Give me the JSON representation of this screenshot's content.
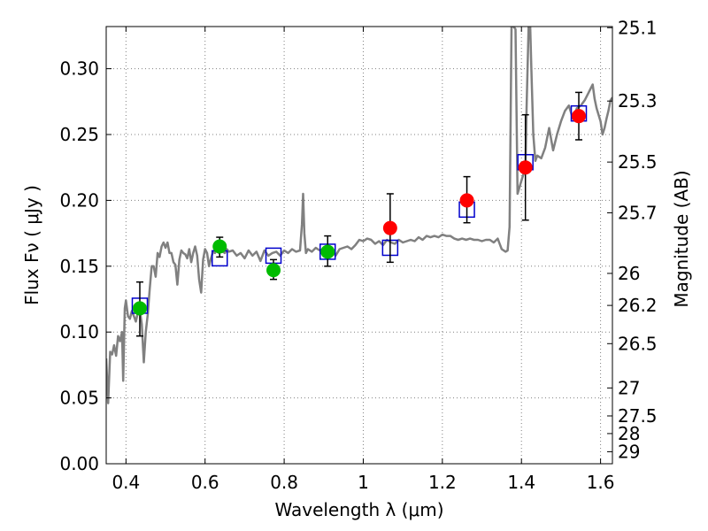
{
  "chart_data": {
    "type": "scatter",
    "xlabel": "Wavelength  λ (μm)",
    "ylabel_left": "Flux  Fν  ( μJy )",
    "ylabel_right": "Magnitude (AB)",
    "xlim": [
      0.35,
      1.63
    ],
    "ylim": [
      0.0,
      0.332
    ],
    "grid": true,
    "x_ticks": [
      0.4,
      0.6,
      0.8,
      1.0,
      1.2,
      1.4,
      1.6
    ],
    "x_tick_labels": [
      "0.4",
      "0.6",
      "0.8",
      "1",
      "1.2",
      "1.4",
      "1.6"
    ],
    "y_ticks": [
      0.0,
      0.05,
      0.1,
      0.15,
      0.2,
      0.25,
      0.3
    ],
    "y_tick_labels": [
      "0.00",
      "0.05",
      "0.10",
      "0.15",
      "0.20",
      "0.25",
      "0.30"
    ],
    "mag_ticks": [
      {
        "label": "25.1",
        "value": 25.1
      },
      {
        "label": "25.3",
        "value": 25.3
      },
      {
        "label": "25.5",
        "value": 25.5
      },
      {
        "label": "25.7",
        "value": 25.7
      },
      {
        "label": "26",
        "value": 26.0
      },
      {
        "label": "26.2",
        "value": 26.2
      },
      {
        "label": "26.5",
        "value": 26.5
      },
      {
        "label": "27",
        "value": 27.0
      },
      {
        "label": "27.5",
        "value": 27.5
      },
      {
        "label": "28",
        "value": 28.0
      },
      {
        "label": "29",
        "value": 29.0
      }
    ],
    "colors": {
      "spectrum": "#808080",
      "model_box": "#0000cc",
      "optical_points": "#00bb00",
      "nir_points": "#ff0000",
      "errorbar": "#000000",
      "grid": "#808080"
    },
    "model_fluxes": [
      {
        "x": 0.435,
        "y": 0.12
      },
      {
        "x": 0.637,
        "y": 0.156
      },
      {
        "x": 0.773,
        "y": 0.158
      },
      {
        "x": 0.91,
        "y": 0.161
      },
      {
        "x": 1.068,
        "y": 0.164
      },
      {
        "x": 1.262,
        "y": 0.193
      },
      {
        "x": 1.41,
        "y": 0.229
      },
      {
        "x": 1.545,
        "y": 0.266
      }
    ],
    "observed_optical": [
      {
        "x": 0.435,
        "y": 0.118,
        "err_low": 0.021,
        "err_high": 0.02
      },
      {
        "x": 0.637,
        "y": 0.165,
        "err_low": 0.008,
        "err_high": 0.007
      },
      {
        "x": 0.773,
        "y": 0.147,
        "err_low": 0.007,
        "err_high": 0.008
      },
      {
        "x": 0.91,
        "y": 0.161,
        "err_low": 0.011,
        "err_high": 0.012
      }
    ],
    "observed_nir": [
      {
        "x": 1.068,
        "y": 0.179,
        "err_low": 0.026,
        "err_high": 0.026
      },
      {
        "x": 1.262,
        "y": 0.2,
        "err_low": 0.017,
        "err_high": 0.018
      },
      {
        "x": 1.41,
        "y": 0.225,
        "err_low": 0.04,
        "err_high": 0.04
      },
      {
        "x": 1.545,
        "y": 0.264,
        "err_low": 0.018,
        "err_high": 0.018
      }
    ],
    "spectrum": [
      [
        0.35,
        0.08
      ],
      [
        0.355,
        0.046
      ],
      [
        0.36,
        0.085
      ],
      [
        0.365,
        0.083
      ],
      [
        0.37,
        0.09
      ],
      [
        0.375,
        0.082
      ],
      [
        0.38,
        0.097
      ],
      [
        0.385,
        0.093
      ],
      [
        0.39,
        0.1
      ],
      [
        0.393,
        0.063
      ],
      [
        0.397,
        0.118
      ],
      [
        0.4,
        0.124
      ],
      [
        0.405,
        0.112
      ],
      [
        0.41,
        0.11
      ],
      [
        0.415,
        0.116
      ],
      [
        0.42,
        0.112
      ],
      [
        0.425,
        0.108
      ],
      [
        0.43,
        0.115
      ],
      [
        0.435,
        0.117
      ],
      [
        0.44,
        0.106
      ],
      [
        0.445,
        0.077
      ],
      [
        0.45,
        0.1
      ],
      [
        0.455,
        0.113
      ],
      [
        0.46,
        0.133
      ],
      [
        0.465,
        0.15
      ],
      [
        0.47,
        0.15
      ],
      [
        0.475,
        0.142
      ],
      [
        0.48,
        0.16
      ],
      [
        0.485,
        0.157
      ],
      [
        0.49,
        0.165
      ],
      [
        0.495,
        0.168
      ],
      [
        0.5,
        0.164
      ],
      [
        0.505,
        0.168
      ],
      [
        0.51,
        0.16
      ],
      [
        0.515,
        0.16
      ],
      [
        0.52,
        0.153
      ],
      [
        0.525,
        0.151
      ],
      [
        0.53,
        0.136
      ],
      [
        0.535,
        0.155
      ],
      [
        0.54,
        0.162
      ],
      [
        0.545,
        0.16
      ],
      [
        0.55,
        0.159
      ],
      [
        0.555,
        0.156
      ],
      [
        0.56,
        0.163
      ],
      [
        0.565,
        0.153
      ],
      [
        0.57,
        0.16
      ],
      [
        0.575,
        0.165
      ],
      [
        0.58,
        0.158
      ],
      [
        0.585,
        0.14
      ],
      [
        0.59,
        0.13
      ],
      [
        0.595,
        0.155
      ],
      [
        0.6,
        0.163
      ],
      [
        0.605,
        0.16
      ],
      [
        0.61,
        0.15
      ],
      [
        0.615,
        0.156
      ],
      [
        0.62,
        0.161
      ],
      [
        0.625,
        0.16
      ],
      [
        0.63,
        0.164
      ],
      [
        0.635,
        0.16
      ],
      [
        0.64,
        0.163
      ],
      [
        0.645,
        0.161
      ],
      [
        0.65,
        0.16
      ],
      [
        0.655,
        0.163
      ],
      [
        0.66,
        0.161
      ],
      [
        0.67,
        0.162
      ],
      [
        0.68,
        0.158
      ],
      [
        0.69,
        0.16
      ],
      [
        0.7,
        0.156
      ],
      [
        0.71,
        0.162
      ],
      [
        0.72,
        0.158
      ],
      [
        0.73,
        0.161
      ],
      [
        0.74,
        0.154
      ],
      [
        0.75,
        0.162
      ],
      [
        0.76,
        0.158
      ],
      [
        0.77,
        0.16
      ],
      [
        0.78,
        0.161
      ],
      [
        0.79,
        0.158
      ],
      [
        0.8,
        0.162
      ],
      [
        0.81,
        0.16
      ],
      [
        0.82,
        0.163
      ],
      [
        0.83,
        0.161
      ],
      [
        0.84,
        0.162
      ],
      [
        0.845,
        0.182
      ],
      [
        0.848,
        0.205
      ],
      [
        0.851,
        0.175
      ],
      [
        0.855,
        0.16
      ],
      [
        0.86,
        0.163
      ],
      [
        0.87,
        0.161
      ],
      [
        0.88,
        0.164
      ],
      [
        0.89,
        0.162
      ],
      [
        0.9,
        0.163
      ],
      [
        0.91,
        0.16
      ],
      [
        0.92,
        0.162
      ],
      [
        0.93,
        0.158
      ],
      [
        0.94,
        0.163
      ],
      [
        0.95,
        0.164
      ],
      [
        0.96,
        0.165
      ],
      [
        0.97,
        0.163
      ],
      [
        0.98,
        0.166
      ],
      [
        0.99,
        0.17
      ],
      [
        1.0,
        0.169
      ],
      [
        1.01,
        0.171
      ],
      [
        1.02,
        0.17
      ],
      [
        1.03,
        0.167
      ],
      [
        1.04,
        0.169
      ],
      [
        1.05,
        0.166
      ],
      [
        1.06,
        0.17
      ],
      [
        1.07,
        0.168
      ],
      [
        1.08,
        0.167
      ],
      [
        1.09,
        0.17
      ],
      [
        1.1,
        0.168
      ],
      [
        1.11,
        0.169
      ],
      [
        1.12,
        0.17
      ],
      [
        1.13,
        0.169
      ],
      [
        1.14,
        0.172
      ],
      [
        1.15,
        0.17
      ],
      [
        1.16,
        0.173
      ],
      [
        1.17,
        0.172
      ],
      [
        1.18,
        0.173
      ],
      [
        1.19,
        0.172
      ],
      [
        1.2,
        0.174
      ],
      [
        1.21,
        0.173
      ],
      [
        1.22,
        0.173
      ],
      [
        1.23,
        0.171
      ],
      [
        1.24,
        0.17
      ],
      [
        1.25,
        0.171
      ],
      [
        1.26,
        0.17
      ],
      [
        1.27,
        0.171
      ],
      [
        1.28,
        0.17
      ],
      [
        1.29,
        0.17
      ],
      [
        1.3,
        0.169
      ],
      [
        1.31,
        0.17
      ],
      [
        1.32,
        0.17
      ],
      [
        1.33,
        0.168
      ],
      [
        1.34,
        0.171
      ],
      [
        1.345,
        0.167
      ],
      [
        1.35,
        0.163
      ],
      [
        1.36,
        0.161
      ],
      [
        1.365,
        0.162
      ],
      [
        1.37,
        0.18
      ],
      [
        1.375,
        0.332
      ],
      [
        1.38,
        0.332
      ],
      [
        1.385,
        0.33
      ],
      [
        1.39,
        0.205
      ],
      [
        1.395,
        0.21
      ],
      [
        1.4,
        0.215
      ],
      [
        1.405,
        0.22
      ],
      [
        1.41,
        0.223
      ],
      [
        1.413,
        0.27
      ],
      [
        1.418,
        0.332
      ],
      [
        1.422,
        0.332
      ],
      [
        1.425,
        0.3
      ],
      [
        1.43,
        0.25
      ],
      [
        1.435,
        0.23
      ],
      [
        1.44,
        0.234
      ],
      [
        1.45,
        0.232
      ],
      [
        1.46,
        0.24
      ],
      [
        1.47,
        0.255
      ],
      [
        1.48,
        0.238
      ],
      [
        1.49,
        0.25
      ],
      [
        1.5,
        0.26
      ],
      [
        1.51,
        0.268
      ],
      [
        1.52,
        0.272
      ],
      [
        1.53,
        0.262
      ],
      [
        1.54,
        0.27
      ],
      [
        1.55,
        0.272
      ],
      [
        1.56,
        0.276
      ],
      [
        1.57,
        0.282
      ],
      [
        1.58,
        0.288
      ],
      [
        1.585,
        0.277
      ],
      [
        1.59,
        0.27
      ],
      [
        1.6,
        0.26
      ],
      [
        1.605,
        0.25
      ],
      [
        1.61,
        0.255
      ],
      [
        1.615,
        0.262
      ],
      [
        1.62,
        0.268
      ],
      [
        1.625,
        0.276
      ],
      [
        1.63,
        0.278
      ]
    ]
  }
}
